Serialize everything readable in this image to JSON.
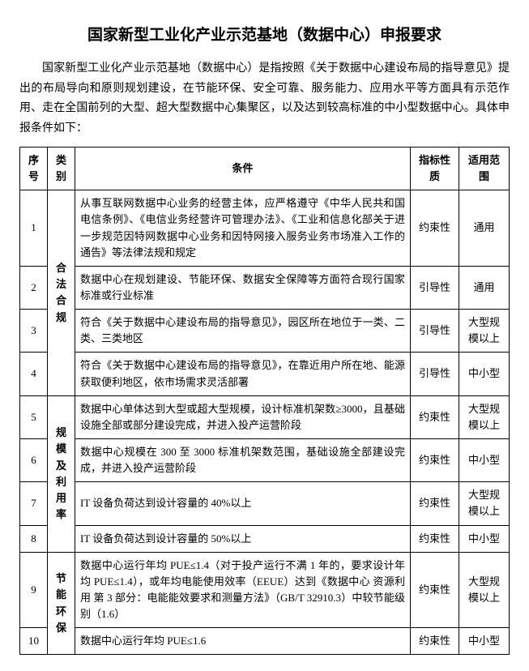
{
  "title": "国家新型工业化产业示范基地（数据中心）申报要求",
  "intro": "国家新型工业化产业示范基地（数据中心）是指按照《关于数据中心建设布局的指导意见》提出的布局导向和原则规划建设，在节能环保、安全可靠、服务能力、应用水平等方面具有示范作用、走在全国前列的大型、超大型数据中心集聚区，以及达到较高标准的中小型数据中心。具体申报条件如下：",
  "headers": {
    "seq": "序号",
    "cat": "类别",
    "cond": "条件",
    "nat": "指标性质",
    "scope": "适用范围"
  },
  "cats": {
    "c1": "合法合规",
    "c2": "规模及利用率",
    "c3": "节能环保"
  },
  "rows": {
    "r1": {
      "seq": "1",
      "cond": "从事互联网数据中心业务的经营主体，应严格遵守《中华人民共和国电信条例》、《电信业务经营许可管理办法》、《工业和信息化部关于进一步规范因特网数据中心业务和因特网接入服务业务市场准入工作的通告》等法律法规和规定",
      "nat": "约束性",
      "scope": "通用"
    },
    "r2": {
      "seq": "2",
      "cond": "数据中心在规划建设、节能环保、数据安全保障等方面符合现行国家标准或行业标准",
      "nat": "引导性",
      "scope": "通用"
    },
    "r3": {
      "seq": "3",
      "cond": "符合《关于数据中心建设布局的指导意见》，园区所在地位于一类、二类、三类地区",
      "nat": "引导性",
      "scope": "大型规模以上"
    },
    "r4": {
      "seq": "4",
      "cond": "符合《关于数据中心建设布局的指导意见》，在靠近用户所在地、能源获取便利地区，依市场需求灵活部署",
      "nat": "引导性",
      "scope": "中小型"
    },
    "r5": {
      "seq": "5",
      "cond": "数据中心单体达到大型或超大型规模，设计标准机架数≥3000，且基础设施全部或部分建设完成，并进入投产运营阶段",
      "nat": "约束性",
      "scope": "大型规模以上"
    },
    "r6": {
      "seq": "6",
      "cond": "数据中心规模在 300 至 3000 标准机架数范围，基础设施全部建设完成，并进入投产运营阶段",
      "nat": "约束性",
      "scope": "中小型"
    },
    "r7": {
      "seq": "7",
      "cond": "IT 设备负荷达到设计容量的 40%以上",
      "nat": "约束性",
      "scope": "大型规模以上"
    },
    "r8": {
      "seq": "8",
      "cond": "IT 设备负荷达到设计容量的 50%以上",
      "nat": "约束性",
      "scope": "中小型"
    },
    "r9": {
      "seq": "9",
      "cond": "数据中心运行年均 PUE≤1.4（对于投产运行不满 1 年的，要求设计年均 PUE≤1.4），或年均电能使用效率（EEUE）达到《数据中心 资源利用 第 3 部分：电能能效要求和测量方法》（GB/T 32910.3）中较节能级别（1.6）",
      "nat": "约束性",
      "scope": "大型规模以上"
    },
    "r10": {
      "seq": "10",
      "cond": "数据中心运行年均 PUE≤1.6",
      "nat": "约束性",
      "scope": "中小型"
    }
  }
}
